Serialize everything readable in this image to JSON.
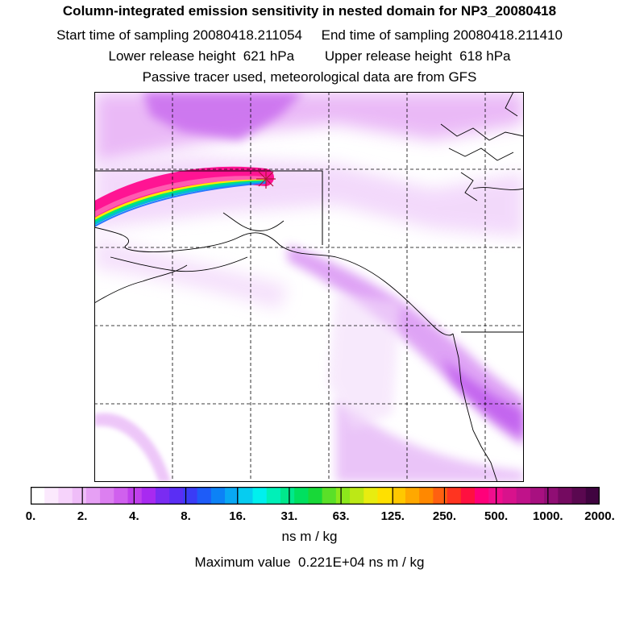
{
  "header": {
    "title": "Column-integrated emission sensitivity in nested domain for NP3_20080418",
    "start_label": "Start time of sampling 20080418.211054",
    "end_label": "End time of sampling 20080418.211410",
    "lower_label": "Lower release height  621 hPa",
    "upper_label": "Upper release height  618 hPa",
    "tracer_label": "Passive tracer used, meteorological data are from GFS"
  },
  "map": {
    "source_marker": "star-marker",
    "grid_style": "dashed",
    "plume_colors": [
      "#ff1493",
      "#e0197c",
      "#ffea00",
      "#00e676",
      "#00bcd4",
      "#2979ff"
    ]
  },
  "colorbar": {
    "colors": [
      "#ffffff",
      "#fbe9fd",
      "#f6d3fb",
      "#efbdf8",
      "#e6a0f4",
      "#dc7ff0",
      "#d060ee",
      "#c040ec",
      "#a82af0",
      "#7a2cf2",
      "#5a2ef4",
      "#3a3cf6",
      "#1e5cf8",
      "#0c82f6",
      "#08a8f4",
      "#06ccf0",
      "#00f0ee",
      "#00f0b8",
      "#00e88c",
      "#00e060",
      "#18d838",
      "#5ae028",
      "#8ce81c",
      "#bce816",
      "#e8ec10",
      "#ffe000",
      "#ffc800",
      "#ffa800",
      "#ff8800",
      "#ff6010",
      "#ff3420",
      "#ff1040",
      "#ff007a",
      "#f00e8e",
      "#d8128c",
      "#c0128a",
      "#a81080",
      "#900e74",
      "#740a60",
      "#5a0850",
      "#400440"
    ],
    "tick_labels": [
      "0.",
      "2.",
      "4.",
      "8.",
      "16.",
      "31.",
      "63.",
      "125.",
      "250.",
      "500.",
      "1000.",
      "2000."
    ],
    "units": "ns m / kg",
    "max_label": "Maximum value  0.221E+04 ns m / kg"
  }
}
